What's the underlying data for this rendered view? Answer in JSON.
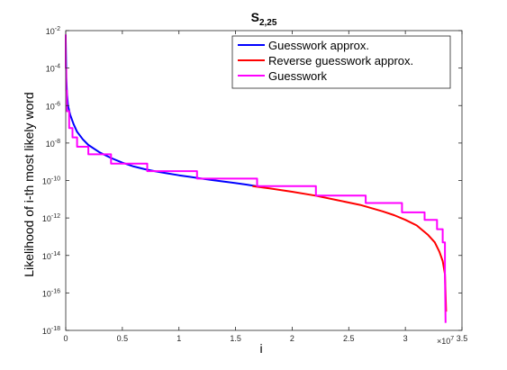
{
  "chart_data": {
    "type": "line",
    "title": "S",
    "title_subscript": "2,25",
    "xlabel": "i",
    "ylabel": "Likelihood of i-th most likely word",
    "xlim": [
      0,
      3.5
    ],
    "x_exponent_label": "×10",
    "x_exponent_power": "7",
    "ylim_log10": [
      -18,
      -2
    ],
    "yscale": "log",
    "x_ticks": [
      0,
      0.5,
      1,
      1.5,
      2,
      2.5,
      3,
      3.5
    ],
    "x_tick_labels": [
      "0",
      "0.5",
      "1",
      "1.5",
      "2",
      "2.5",
      "3",
      "3.5"
    ],
    "y_ticks_log10": [
      -18,
      -16,
      -14,
      -12,
      -10,
      -8,
      -6,
      -4,
      -2
    ],
    "y_tick_labels": [
      {
        "base": "10",
        "exp": "-18"
      },
      {
        "base": "10",
        "exp": "-16"
      },
      {
        "base": "10",
        "exp": "-14"
      },
      {
        "base": "10",
        "exp": "-12"
      },
      {
        "base": "10",
        "exp": "-10"
      },
      {
        "base": "10",
        "exp": "-8"
      },
      {
        "base": "10",
        "exp": "-6"
      },
      {
        "base": "10",
        "exp": "-4"
      },
      {
        "base": "10",
        "exp": "-2"
      }
    ],
    "legend_position": "top-right",
    "series": [
      {
        "name": "Guesswork approx.",
        "color": "#0000ff",
        "x": [
          0.0,
          0.005,
          0.01,
          0.02,
          0.04,
          0.07,
          0.1,
          0.15,
          0.2,
          0.3,
          0.4,
          0.5,
          0.6,
          0.7,
          0.8,
          0.9,
          1.0,
          1.1,
          1.2,
          1.3,
          1.4,
          1.5,
          1.6,
          1.68
        ],
        "log10_y": [
          -2.5,
          -4.5,
          -5.3,
          -6.0,
          -6.5,
          -7.0,
          -7.4,
          -7.8,
          -8.1,
          -8.5,
          -8.8,
          -9.05,
          -9.25,
          -9.4,
          -9.52,
          -9.62,
          -9.72,
          -9.81,
          -9.9,
          -9.98,
          -10.06,
          -10.14,
          -10.22,
          -10.3
        ]
      },
      {
        "name": "Reverse guesswork approx.",
        "color": "#ff0000",
        "x": [
          1.65,
          1.8,
          2.0,
          2.2,
          2.4,
          2.6,
          2.8,
          2.9,
          3.0,
          3.1,
          3.2,
          3.26,
          3.3,
          3.33,
          3.35,
          3.36
        ],
        "log10_y": [
          -10.3,
          -10.42,
          -10.6,
          -10.8,
          -11.05,
          -11.3,
          -11.65,
          -11.85,
          -12.1,
          -12.4,
          -12.9,
          -13.3,
          -13.8,
          -14.3,
          -15.0,
          -17.0
        ]
      },
      {
        "name": "Guesswork",
        "color": "#ff00ff",
        "x": [
          0.0,
          0.0,
          0.005,
          0.005,
          0.01,
          0.01,
          0.03,
          0.03,
          0.06,
          0.06,
          0.1,
          0.1,
          0.2,
          0.2,
          0.4,
          0.4,
          0.72,
          0.72,
          1.16,
          1.16,
          1.69,
          1.69,
          2.21,
          2.21,
          2.65,
          2.65,
          2.97,
          2.97,
          3.17,
          3.17,
          3.28,
          3.28,
          3.33,
          3.33,
          3.35,
          3.35,
          3.355
        ],
        "log10_y": [
          -2.2,
          -4.0,
          -4.0,
          -5.2,
          -5.2,
          -6.3,
          -6.3,
          -7.2,
          -7.2,
          -7.7,
          -7.7,
          -8.2,
          -8.2,
          -8.6,
          -8.6,
          -9.1,
          -9.1,
          -9.5,
          -9.5,
          -9.9,
          -9.9,
          -10.3,
          -10.3,
          -10.8,
          -10.8,
          -11.2,
          -11.2,
          -11.7,
          -11.7,
          -12.1,
          -12.1,
          -12.6,
          -12.6,
          -13.3,
          -13.3,
          -15.0,
          -17.6
        ]
      }
    ]
  }
}
